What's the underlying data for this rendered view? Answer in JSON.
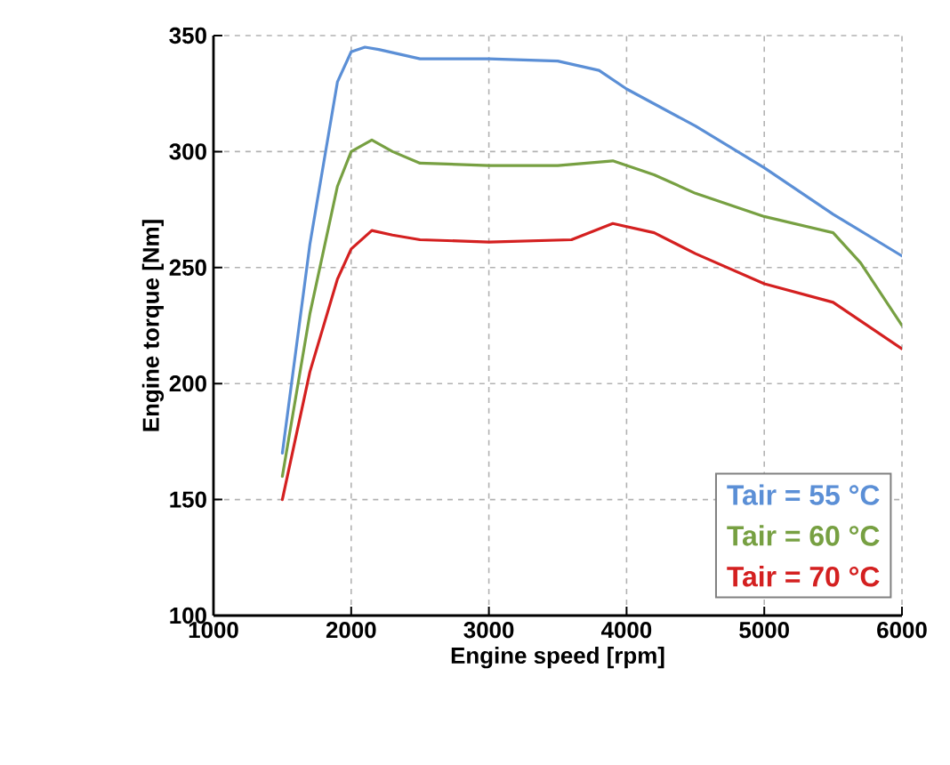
{
  "chart_data": {
    "type": "line",
    "xlabel": "Engine speed [rpm]",
    "ylabel": "Engine torque [Nm]",
    "xlim": [
      1000,
      6000
    ],
    "xticks": [
      1000,
      2000,
      3000,
      4000,
      5000,
      6000
    ],
    "ylim": [
      100,
      350
    ],
    "yticks": [
      100,
      150,
      200,
      250,
      300,
      350
    ],
    "grid": true,
    "legend": "bottom right",
    "marker": "none",
    "line_style": "solid",
    "series": [
      {
        "name": "Tair = 55 °C",
        "color": "#5b8fd6",
        "x": [
          1500,
          1700,
          1900,
          2000,
          2100,
          2200,
          2500,
          3000,
          3500,
          3800,
          4000,
          4500,
          5000,
          5500,
          6000
        ],
        "values": [
          170,
          260,
          330,
          343,
          345,
          344,
          340,
          340,
          339,
          335,
          327,
          311,
          293,
          273,
          255
        ]
      },
      {
        "name": "Tair = 60 °C",
        "color": "#77a042",
        "x": [
          1500,
          1700,
          1900,
          2000,
          2150,
          2300,
          2500,
          3000,
          3500,
          3900,
          4200,
          4500,
          5000,
          5500,
          5700,
          6000
        ],
        "values": [
          160,
          230,
          285,
          300,
          305,
          300,
          295,
          294,
          294,
          296,
          290,
          282,
          272,
          265,
          252,
          225
        ]
      },
      {
        "name": "Tair = 70 °C",
        "color": "#d42020",
        "x": [
          1500,
          1700,
          1900,
          2000,
          2150,
          2300,
          2500,
          3000,
          3600,
          3900,
          4200,
          4500,
          5000,
          5500,
          6000
        ],
        "values": [
          150,
          205,
          245,
          258,
          266,
          264,
          262,
          261,
          262,
          269,
          265,
          256,
          243,
          235,
          215
        ]
      }
    ]
  }
}
